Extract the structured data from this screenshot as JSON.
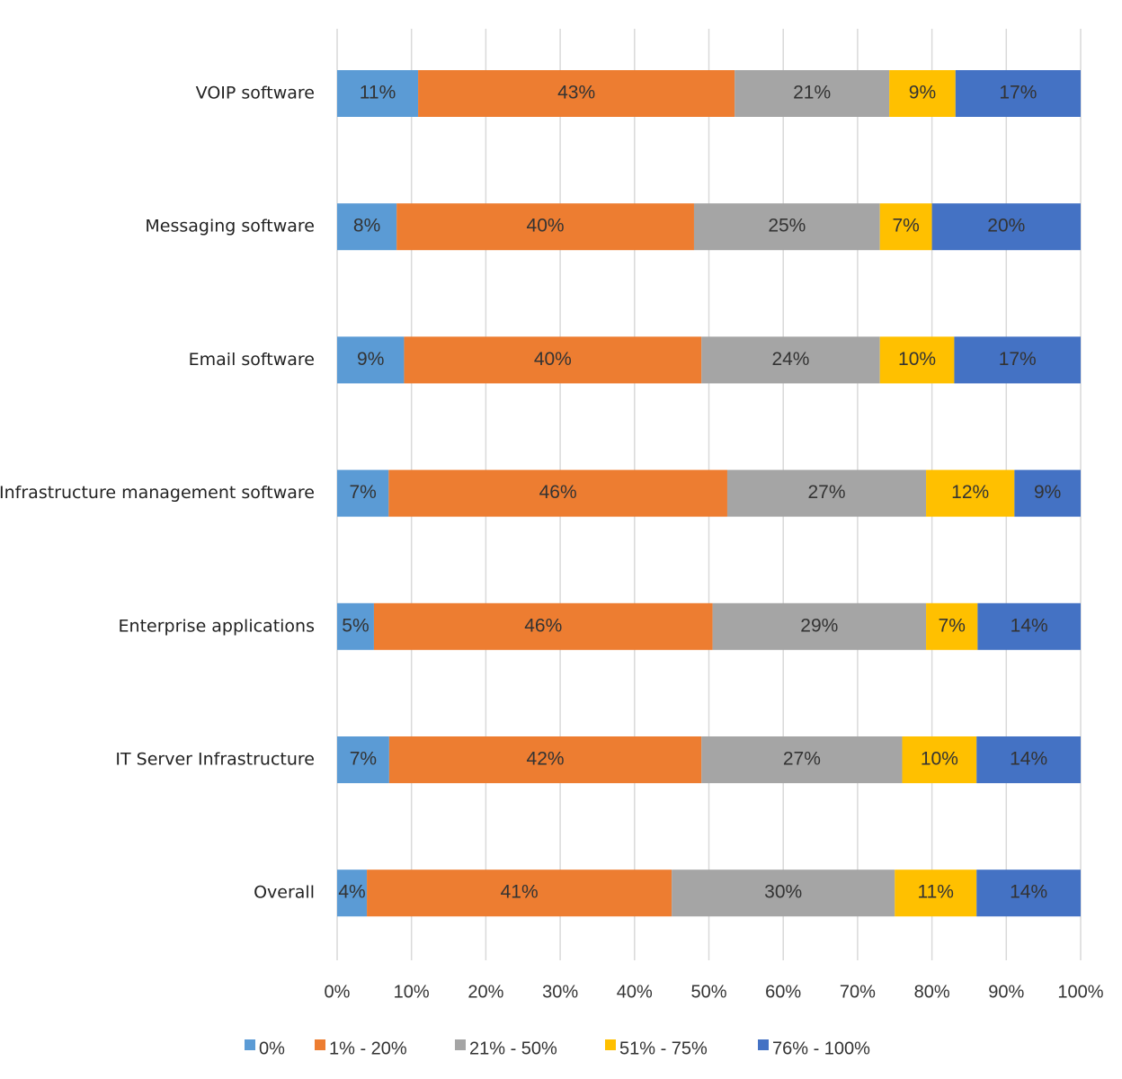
{
  "chart_data": {
    "type": "bar",
    "orientation": "horizontal",
    "stacked": true,
    "percent_stacked": true,
    "categories": [
      "VOIP software",
      "Messaging  software",
      "Email software",
      "Infrastructure management  software",
      "Enterprise applications",
      "IT Server Infrastructure",
      "Overall"
    ],
    "series": [
      {
        "name": "0%",
        "color": "#5B9BD5",
        "values": [
          11,
          8,
          9,
          7,
          5,
          7,
          4
        ]
      },
      {
        "name": "1%  -  20%",
        "color": "#ED7D31",
        "values": [
          43,
          40,
          40,
          46,
          46,
          42,
          41
        ]
      },
      {
        "name": "21%  -  50%",
        "color": "#A5A5A5",
        "values": [
          21,
          25,
          24,
          27,
          29,
          27,
          30
        ]
      },
      {
        "name": "51%  -  75%",
        "color": "#FFC000",
        "values": [
          9,
          7,
          10,
          12,
          7,
          10,
          11
        ]
      },
      {
        "name": "76%  -  100%",
        "color": "#4472C4",
        "values": [
          17,
          20,
          17,
          9,
          14,
          14,
          14
        ]
      }
    ],
    "xlim": [
      0,
      100
    ],
    "x_ticks": [
      0,
      10,
      20,
      30,
      40,
      50,
      60,
      70,
      80,
      90,
      100
    ],
    "x_tick_labels": [
      "0%",
      "10%",
      "20%",
      "30%",
      "40%",
      "50%",
      "60%",
      "70%",
      "80%",
      "90%",
      "100%"
    ],
    "data_label_suffix": "%",
    "grid": "vertical",
    "legend_position": "bottom"
  }
}
